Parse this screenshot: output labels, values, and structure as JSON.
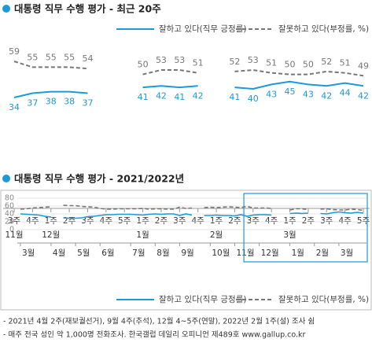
{
  "chart_data": [
    {
      "type": "line",
      "title": "대통령 직무 수행 평가 - 최근 20주",
      "categories": [
        "3주",
        "4주",
        "1주",
        "2주",
        "3주",
        "4주",
        "5주",
        "1주",
        "2주",
        "3주",
        "4주",
        "1주",
        "2주",
        "3주",
        "4주",
        "1주",
        "2주",
        "3주",
        "4주",
        "5주"
      ],
      "x_group_labels": [
        "11월",
        null,
        "12월",
        null,
        null,
        null,
        null,
        "1월",
        null,
        null,
        null,
        "2월",
        null,
        null,
        null,
        "3월",
        null,
        null,
        null,
        null
      ],
      "series": [
        {
          "name": "잘하고 있다(직무 긍정률)",
          "color": "#1a9ad6",
          "dash": false,
          "values": [
            34,
            37,
            38,
            38,
            37,
            null,
            null,
            41,
            42,
            41,
            42,
            null,
            41,
            40,
            43,
            45,
            43,
            42,
            44,
            42
          ]
        },
        {
          "name": "잘못하고 있다(부정률, %)",
          "color": "#777777",
          "dash": true,
          "values": [
            59,
            55,
            55,
            55,
            54,
            null,
            null,
            50,
            53,
            53,
            51,
            null,
            52,
            53,
            51,
            50,
            50,
            52,
            51,
            49
          ]
        }
      ],
      "data_labels": true
    },
    {
      "type": "line",
      "title": "대통령 직무 수행 평가 - 2021/2022년",
      "categories": [
        "3월",
        null,
        null,
        null,
        null,
        "4월",
        null,
        null,
        null,
        "5월",
        null,
        null,
        null,
        "6월",
        null,
        null,
        null,
        null,
        "7월",
        null,
        null,
        null,
        "8월",
        null,
        null,
        null,
        "9월",
        null,
        null,
        null,
        null,
        "10월",
        null,
        null,
        null,
        "11월",
        null,
        null,
        null,
        "12월",
        null,
        null,
        null,
        null,
        "1월",
        null,
        null,
        null,
        "2월",
        null,
        null,
        null,
        "3월",
        null,
        null,
        null,
        null
      ],
      "series": [
        {
          "name": "잘하고 있다(직무 긍정률)",
          "color": "#1a9ad6",
          "dash": false,
          "values": [
            40,
            39,
            38,
            37,
            34,
            32,
            null,
            30,
            29,
            29,
            30,
            33,
            34,
            36,
            38,
            38,
            39,
            39,
            39,
            38,
            37,
            39,
            40,
            39,
            40,
            40,
            36,
            40,
            37,
            null,
            36,
            36,
            37,
            36,
            36,
            35,
            38,
            34,
            37,
            38,
            38,
            37,
            null,
            null,
            41,
            42,
            41,
            42,
            null,
            41,
            40,
            43,
            45,
            43,
            42,
            44,
            42
          ]
        },
        {
          "name": "잘못하고 있다(부정률, %)",
          "color": "#777777",
          "dash": true,
          "values": [
            52,
            53,
            55,
            56,
            57,
            58,
            null,
            62,
            61,
            61,
            59,
            58,
            57,
            54,
            52,
            52,
            53,
            53,
            53,
            53,
            54,
            52,
            53,
            53,
            52,
            52,
            57,
            54,
            55,
            null,
            56,
            57,
            56,
            57,
            58,
            57,
            56,
            59,
            55,
            55,
            55,
            54,
            null,
            null,
            50,
            53,
            53,
            51,
            null,
            52,
            53,
            51,
            50,
            50,
            52,
            51,
            49
          ]
        }
      ],
      "ylim": [
        0,
        80
      ],
      "yticks": [
        0,
        20,
        40,
        60,
        80
      ],
      "grid": true
    }
  ],
  "notes": [
    "- 2021년 4월 2주(재보궐선거), 9월 4주(추석), 12월 4~5주(연말), 2022년 2월 1주(설) 조사 쉼",
    "- 매주 전국 성인 약 1,000명 전화조사. 한국갤럽 데일리 오피니언 제489호 www.gallup.co.kr"
  ]
}
